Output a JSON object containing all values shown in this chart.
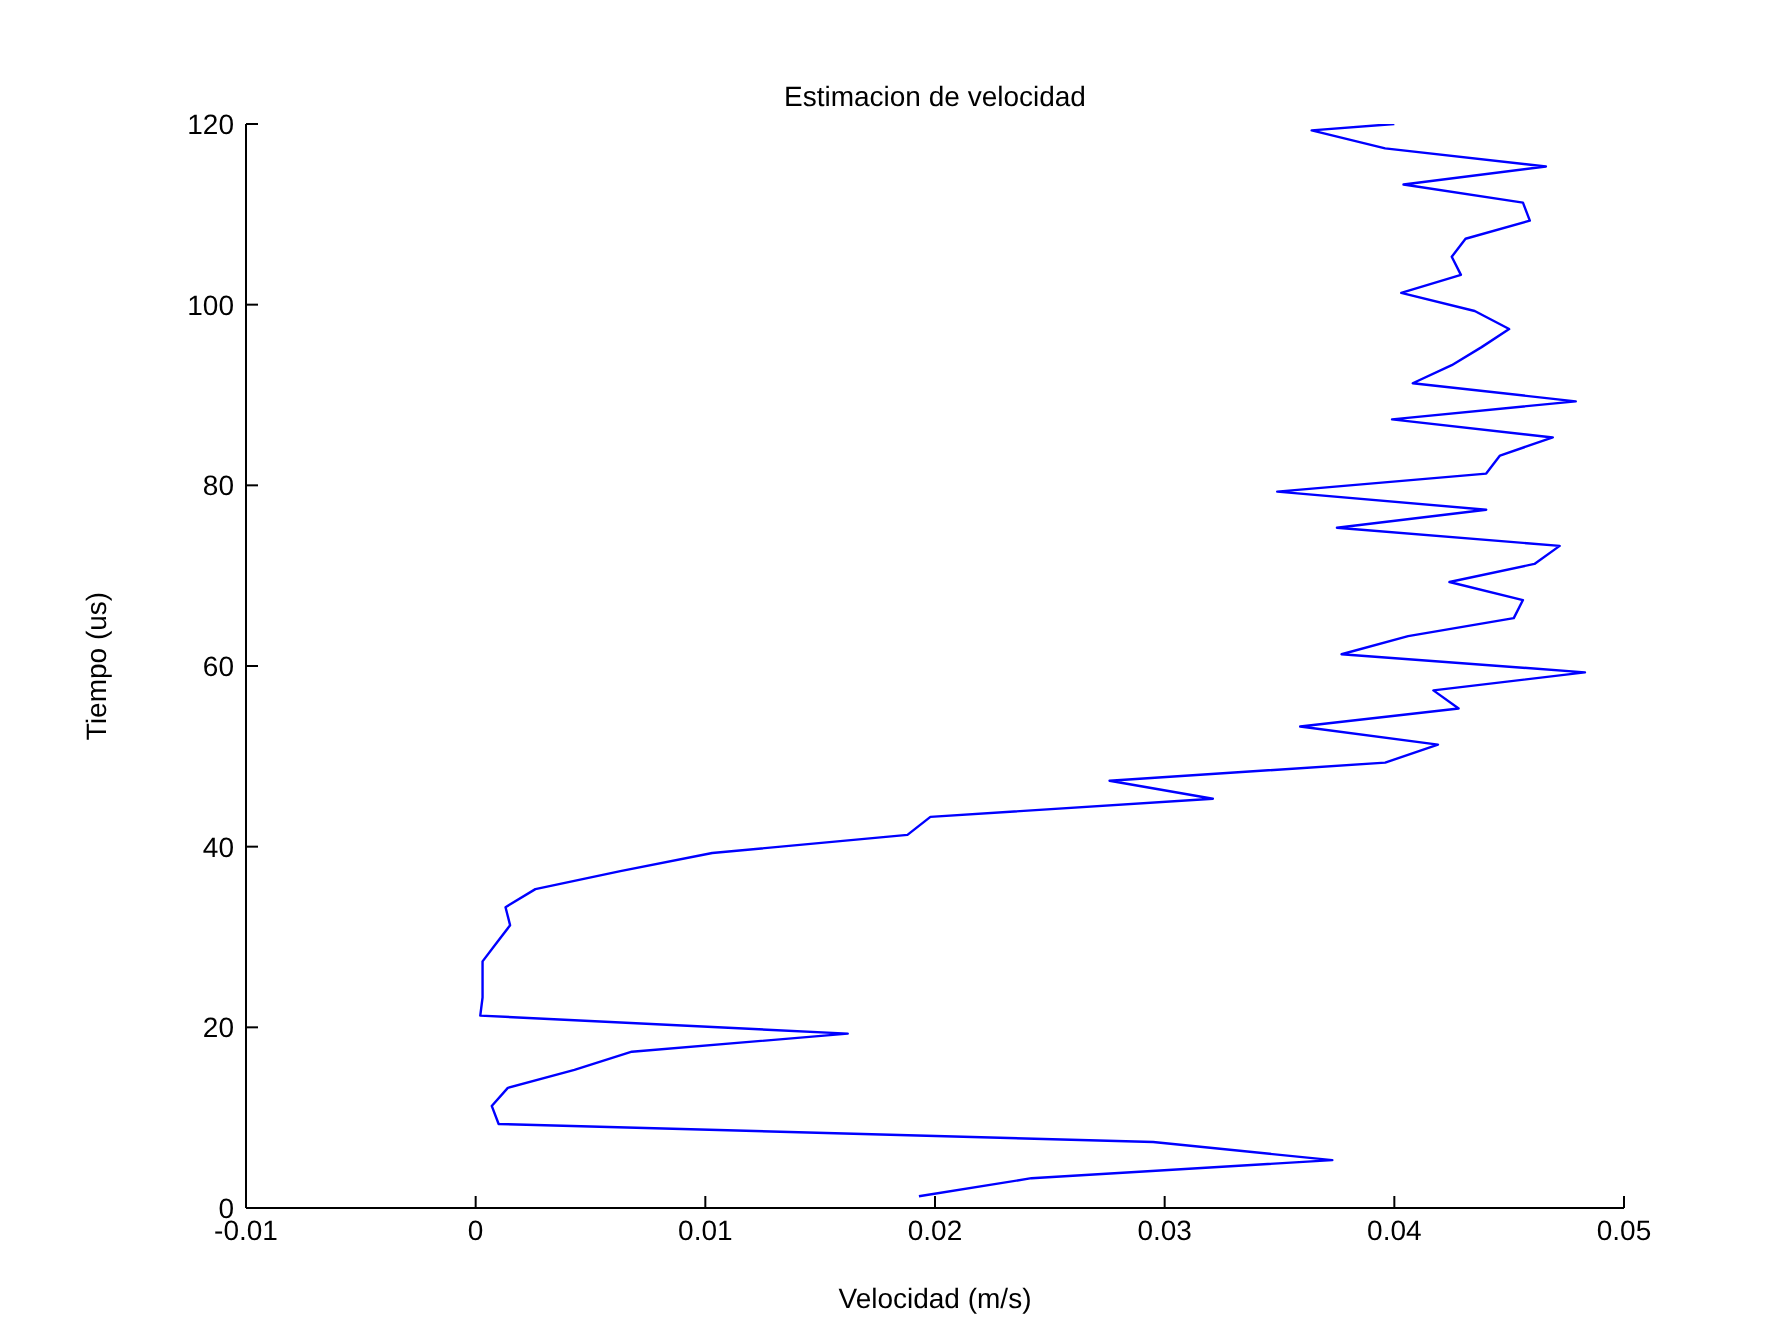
{
  "chart_data": {
    "type": "line",
    "title": "Estimacion de velocidad",
    "xlabel": "Velocidad (m/s)",
    "ylabel": "Tiempo (us)",
    "x": [
      0.0193,
      0.0242,
      0.0373,
      0.0295,
      0.001,
      0.0007,
      0.0014,
      0.0043,
      0.0068,
      0.0162,
      0.0002,
      0.0003,
      0.0003,
      0.0003,
      0.0009,
      0.0015,
      0.0013,
      0.0026,
      0.0063,
      0.0103,
      0.0188,
      0.0198,
      0.0321,
      0.0276,
      0.0396,
      0.0419,
      0.0359,
      0.0428,
      0.0417,
      0.0483,
      0.0377,
      0.0406,
      0.0452,
      0.0456,
      0.0424,
      0.0461,
      0.0472,
      0.0375,
      0.044,
      0.0349,
      0.044,
      0.0446,
      0.0469,
      0.0399,
      0.0479,
      0.0408,
      0.0425,
      0.0438,
      0.045,
      0.0435,
      0.0403,
      0.0429,
      0.0425,
      0.0431,
      0.0459,
      0.0456,
      0.0404,
      0.0466,
      0.0396,
      0.0364,
      0.04
    ],
    "values": [
      1.3,
      3.3,
      5.3,
      7.3,
      9.3,
      11.3,
      13.3,
      15.3,
      17.3,
      19.3,
      21.3,
      23.3,
      25.3,
      27.3,
      29.3,
      31.3,
      33.3,
      35.3,
      37.3,
      39.3,
      41.3,
      43.3,
      45.3,
      47.3,
      49.3,
      51.3,
      53.3,
      55.3,
      57.3,
      59.3,
      61.3,
      63.3,
      65.3,
      67.3,
      69.3,
      71.3,
      73.3,
      75.3,
      77.3,
      79.3,
      81.3,
      83.3,
      85.3,
      87.3,
      89.3,
      91.3,
      93.3,
      95.3,
      97.3,
      99.3,
      101.3,
      103.3,
      105.3,
      107.3,
      109.3,
      111.3,
      113.3,
      115.3,
      117.3,
      119.3,
      120
    ],
    "color": "#0000ff",
    "xlim": [
      -0.01,
      0.05
    ],
    "xticks": [
      -0.01,
      0,
      0.01,
      0.02,
      0.03,
      0.04,
      0.05
    ],
    "ylim": [
      0,
      120
    ],
    "yticks": [
      0,
      20,
      40,
      60,
      80,
      100,
      120
    ],
    "grid": false
  }
}
